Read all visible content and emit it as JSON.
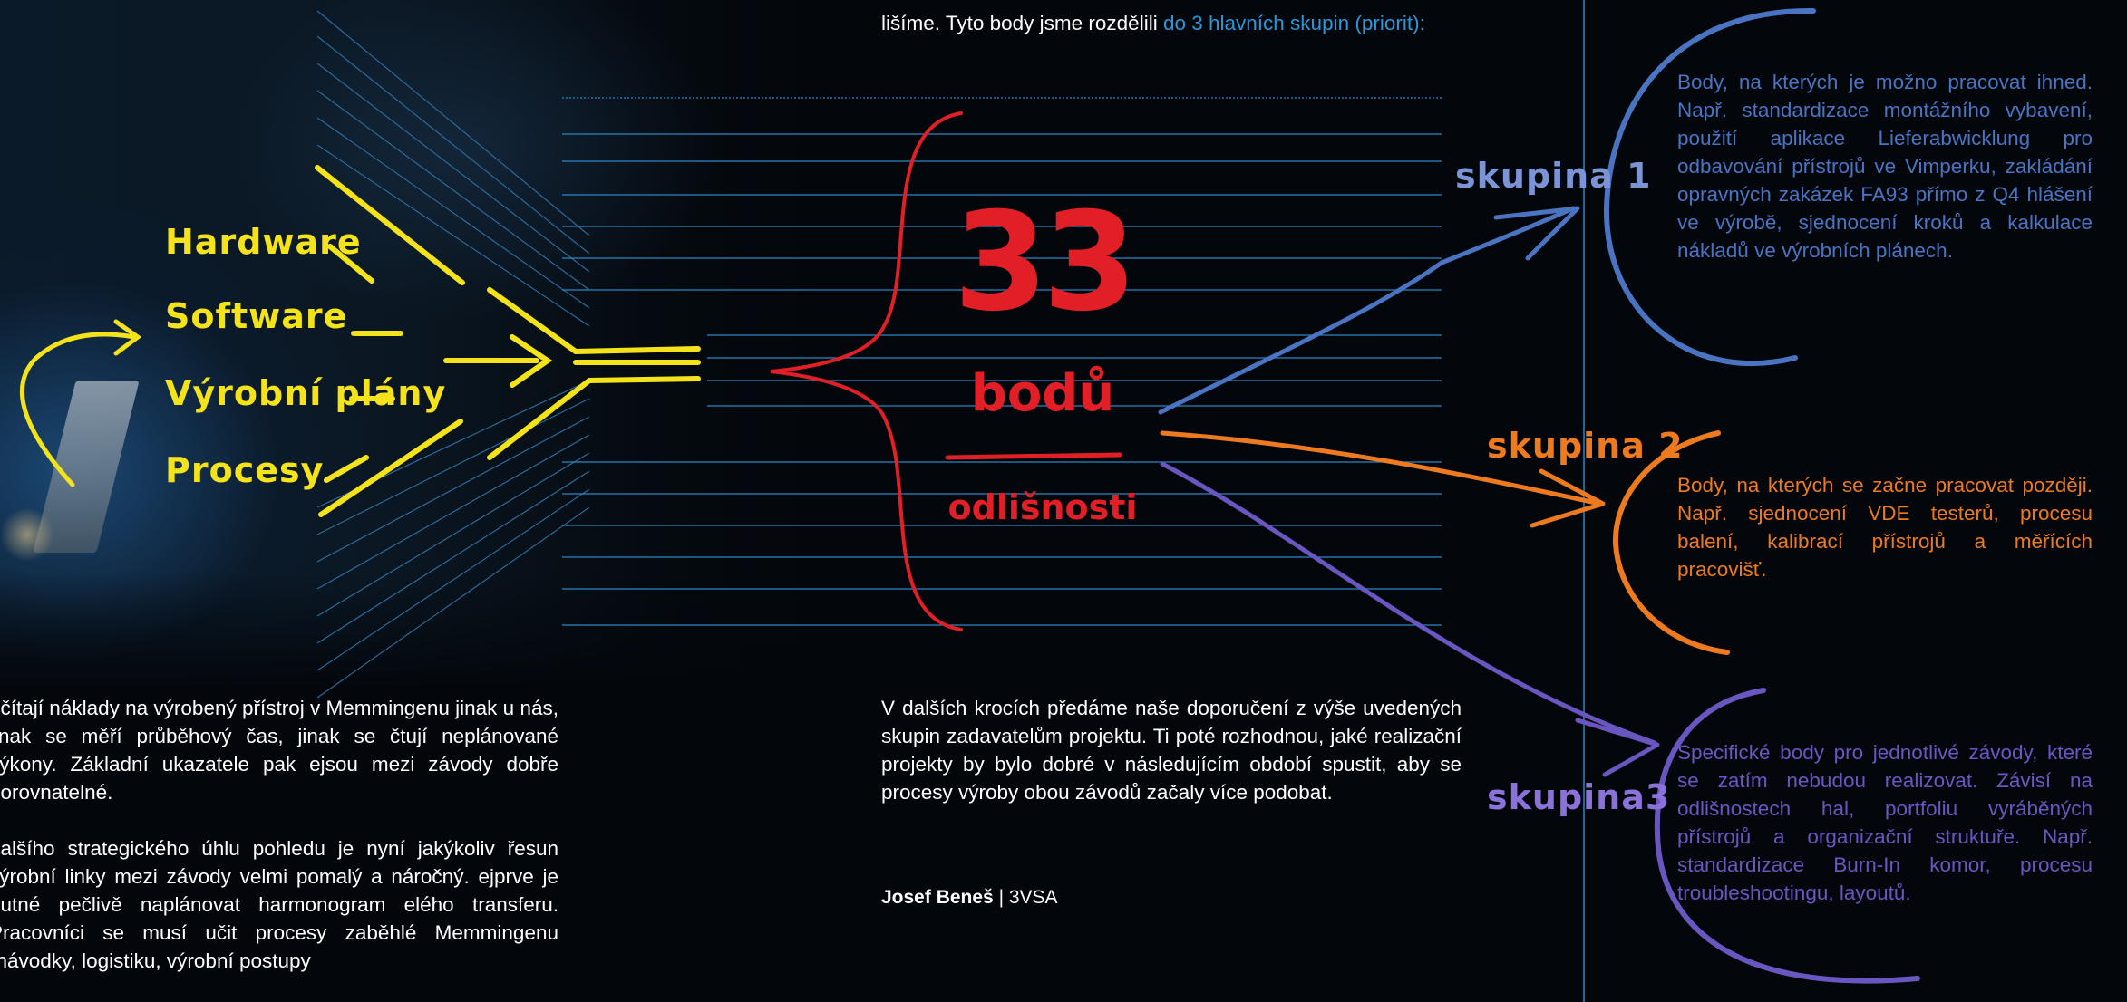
{
  "colors": {
    "yellow": "#f4e31a",
    "red": "#e21f26",
    "blue_group": "#4a74c2",
    "orange_group": "#ee7a1f",
    "purple_group": "#6a56c0",
    "link_blue": "#2a97d8"
  },
  "diagram": {
    "inputs": [
      "Hardware",
      "Software",
      "Výrobní plány",
      "Procesy"
    ],
    "center": {
      "number": "33",
      "unit": "bodů",
      "caption": "odlišnosti"
    },
    "groups": [
      {
        "label": "skupina 1",
        "description": "Body, na kterých je možno pracovat ihned. Např. standardizace montá­žního vybavení, použití aplikace Lieferabwicklung pro odbavování přístrojů ve Vimperku, zakládání oprav­ných zakázek FA93 přímo z Q4 hlášení ve výrobě, sjednocení kroků a kalku­lace nákladů ve výrobních plánech."
      },
      {
        "label": "skupina 2",
        "description": "Body, na kterých se začne pracovat později. Např. sjednocení VDE testerů, procesu balení, kalibrací přístrojů a měřících pracovišť."
      },
      {
        "label": "skupina3",
        "description": "Specifické body pro jednotlivé závody, které se zatím nebudou realizovat. Závisí na odlišnostech hal, portfoliu vyráběných přístrojů a organizační struktuře. Např. standardizace Burn-In komor, procesu troubleshootingu, layoutů."
      }
    ]
  },
  "intro": {
    "text": "lišíme. Tyto body jsme rozdělili ",
    "highlight": "do 3 hlavních skupin (priorit):"
  },
  "next_steps": "V dalších krocích předáme naše doporučení z výše uvedených skupin zadavatelům projektu. Ti poté rozhodnou, jaké realizační projekty by bylo dobré v následujícím období spustit, aby se procesy výroby obou závodů začaly více podobat.",
  "author": {
    "name": "Josef Beneš",
    "separator": " | ",
    "dept": "3VSA"
  },
  "left_column": {
    "paragraph1": "očítají náklady na výrobený přístroj v Memmingenu jinak u nás, jinak se měří průběhový čas, jinak se čtují neplánované výkony. Základní ukazatele pak ejsou mezi závody dobře porovnatelné.",
    "paragraph2": "dalšího strategického úhlu pohledu je nyní jakýkoliv řesun výrobní linky mezi závody velmi pomalý a náročný. ejprve je nutné pečlivě naplánovat harmonogram elého transferu. Pracovníci se musí učit procesy zaběhlé Memmingenu (návodky, logistiku, výrobní postupy"
  }
}
